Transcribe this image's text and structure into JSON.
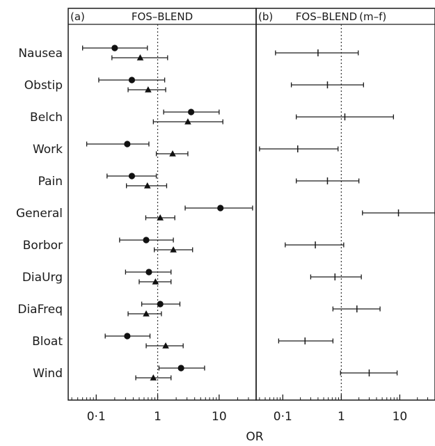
{
  "chart_data": [
    {
      "type": "forest",
      "title": "FOS–BLEND",
      "panel_label": "(a)",
      "xlabel": "OR",
      "xscale": "log",
      "xlim": [
        0.035,
        40
      ],
      "xticks": [
        0.1,
        1,
        10
      ],
      "xtick_labels": [
        "0·1",
        "1",
        "10"
      ],
      "reference_line": 1,
      "categories": [
        "Nausea",
        "Obstip",
        "Belch",
        "Work",
        "Pain",
        "General",
        "Borbor",
        "DiaUrg",
        "DiaFreq",
        "Bloat",
        "Wind"
      ],
      "series": [
        {
          "marker": "circle",
          "or": [
            0.2,
            0.38,
            3.5,
            0.32,
            0.38,
            10.5,
            0.65,
            0.72,
            1.1,
            0.32,
            2.4
          ],
          "low": [
            0.06,
            0.11,
            1.25,
            0.07,
            0.15,
            2.8,
            0.24,
            0.3,
            0.55,
            0.14,
            1.05
          ],
          "high": [
            0.68,
            1.3,
            10.0,
            0.72,
            0.95,
            35.0,
            1.8,
            1.65,
            2.3,
            0.75,
            5.8
          ]
        },
        {
          "marker": "triangle",
          "or": [
            0.52,
            0.7,
            3.1,
            1.75,
            0.68,
            1.1,
            1.8,
            0.92,
            0.65,
            1.35,
            0.85
          ],
          "low": [
            0.18,
            0.33,
            0.85,
            0.95,
            0.31,
            0.64,
            0.88,
            0.5,
            0.33,
            0.65,
            0.44
          ],
          "high": [
            1.45,
            1.35,
            11.5,
            3.1,
            1.4,
            1.9,
            3.7,
            1.65,
            1.15,
            2.6,
            1.65
          ]
        }
      ]
    },
    {
      "type": "forest",
      "title": "FOS–BLEND (m–f)",
      "panel_label": "(b)",
      "xlabel": "OR",
      "xscale": "log",
      "xlim": [
        0.035,
        40
      ],
      "xticks": [
        0.1,
        1,
        10
      ],
      "xtick_labels": [
        "0·1",
        "1",
        "10"
      ],
      "reference_line": 1,
      "categories": [
        "Nausea",
        "Obstip",
        "Belch",
        "Work",
        "Pain",
        "General",
        "Borbor",
        "DiaUrg",
        "DiaFreq",
        "Bloat",
        "Wind"
      ],
      "series": [
        {
          "marker": "plus",
          "or": [
            0.4,
            0.58,
            1.15,
            0.18,
            0.58,
            9.5,
            0.36,
            0.78,
            1.85,
            0.24,
            3.0
          ],
          "low": [
            0.075,
            0.14,
            0.17,
            0.04,
            0.17,
            2.3,
            0.11,
            0.3,
            0.72,
            0.085,
            0.97
          ],
          "high": [
            1.95,
            2.4,
            7.8,
            0.88,
            2.0,
            40,
            1.1,
            2.2,
            4.6,
            0.72,
            9.0
          ]
        }
      ]
    }
  ]
}
